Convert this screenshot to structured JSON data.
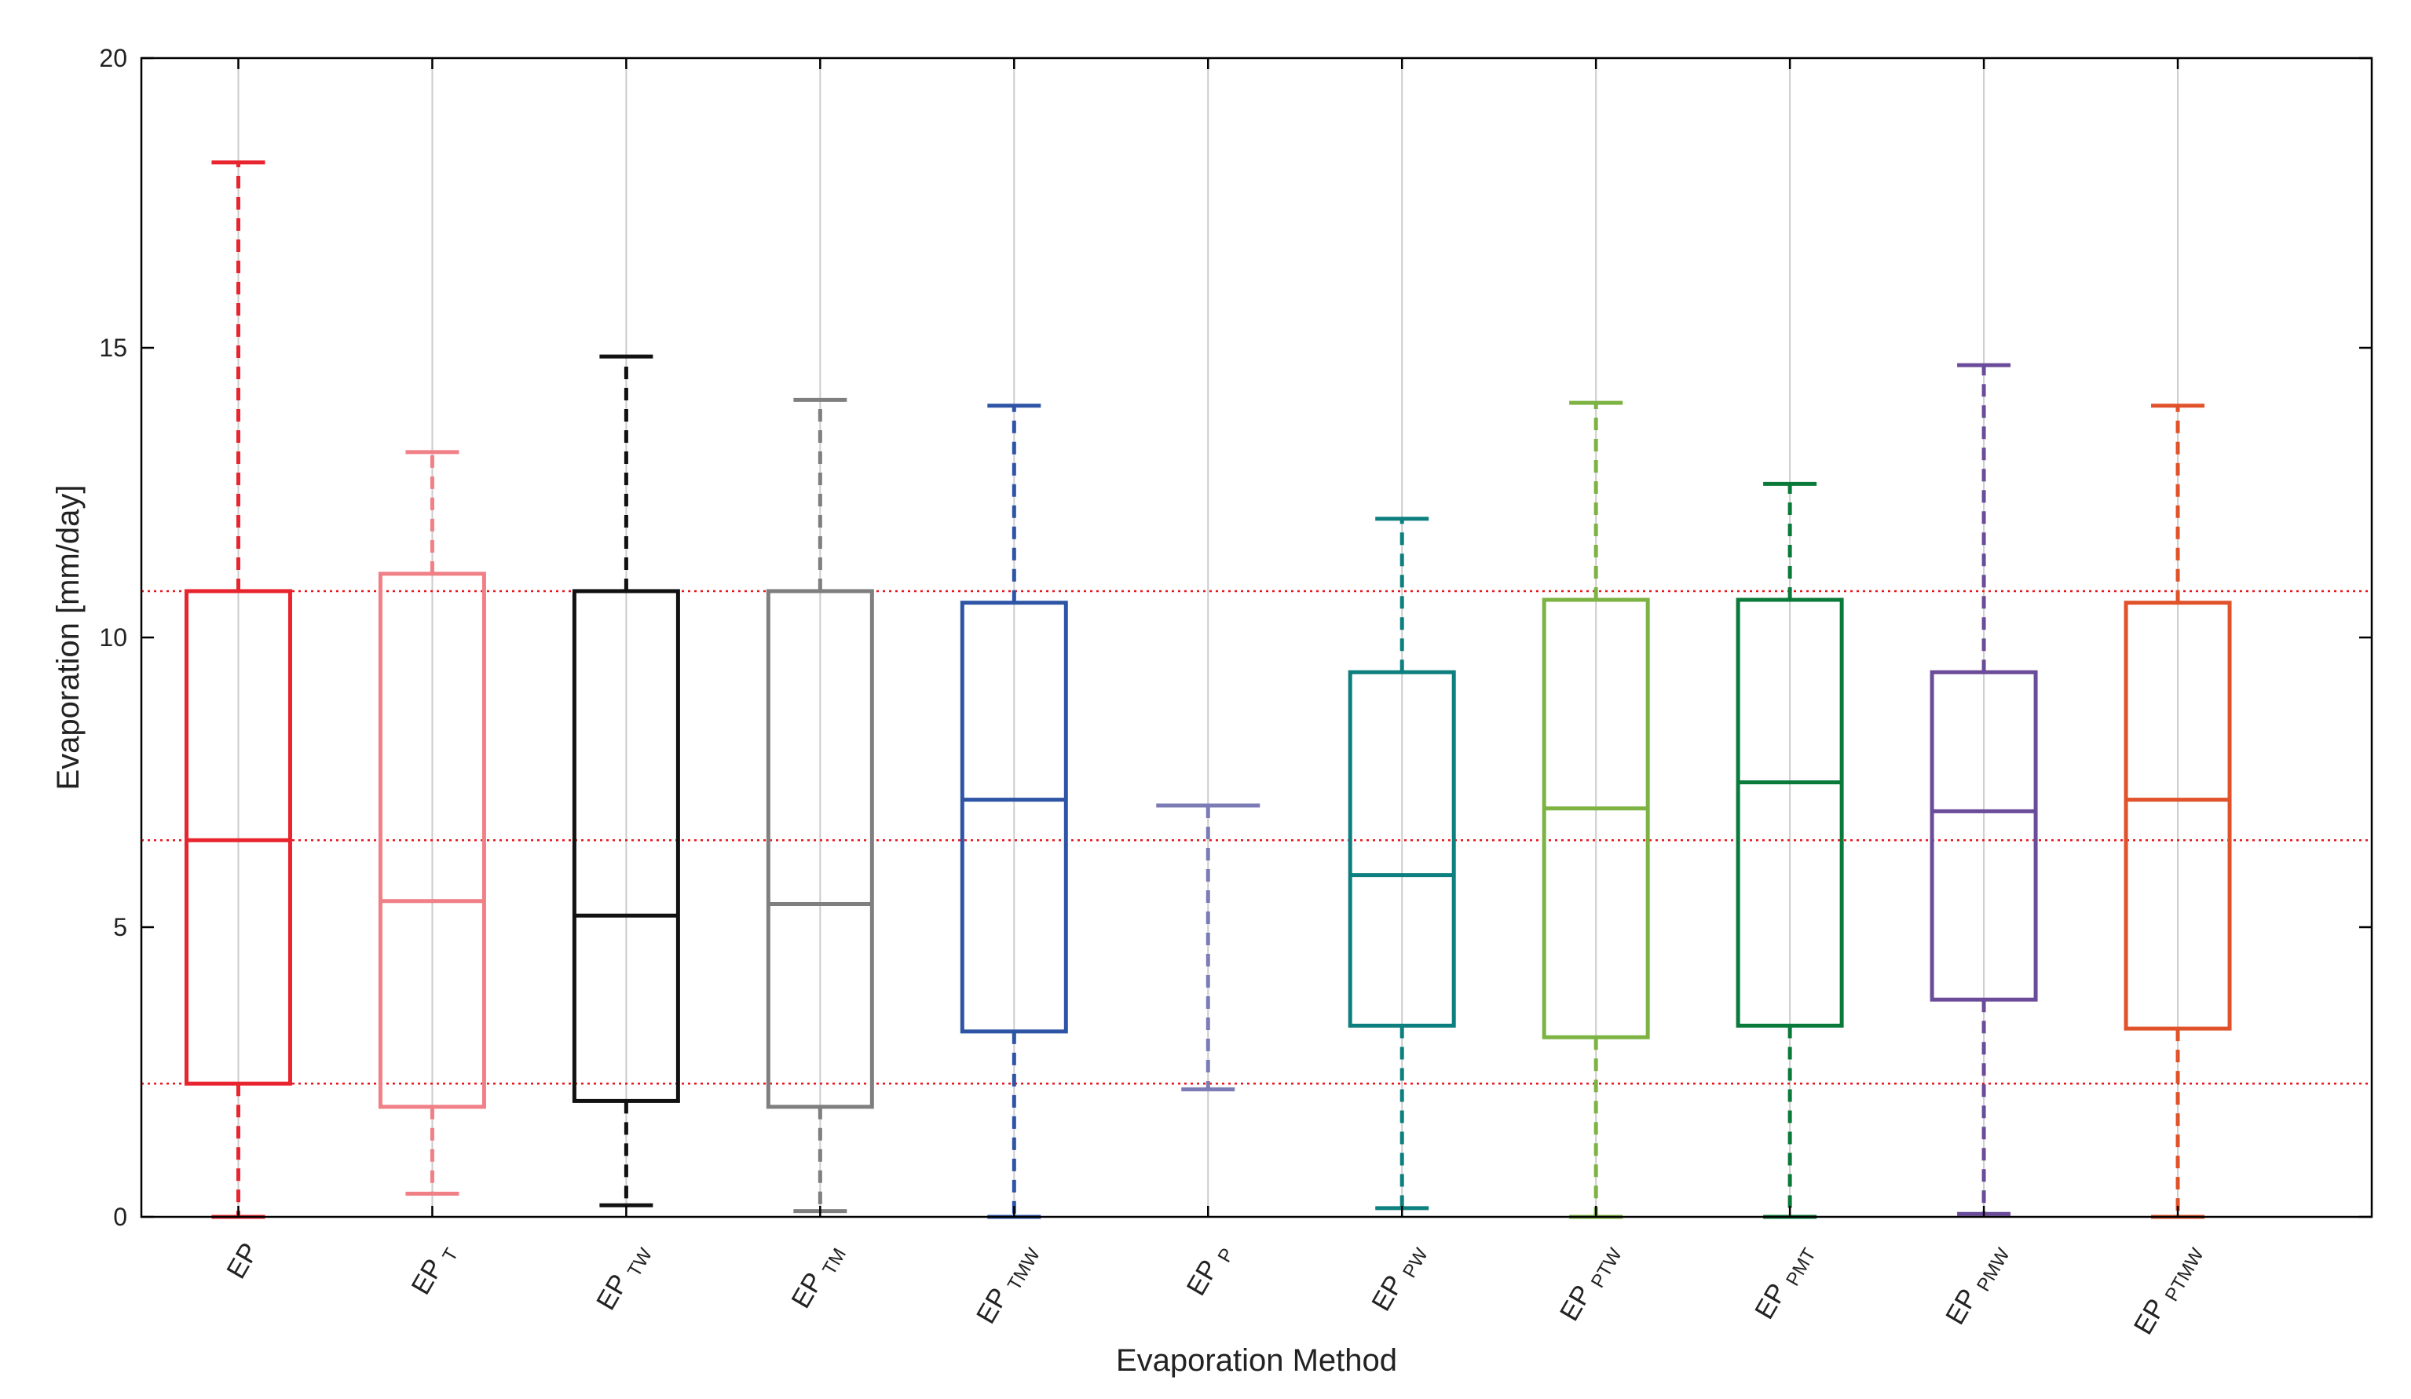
{
  "chart_data": {
    "type": "box",
    "xlabel": "Evaporation Method",
    "ylabel": "Evaporation [mm/day]",
    "ylim": [
      0,
      20
    ],
    "yticks": [
      0,
      5,
      10,
      15,
      20
    ],
    "grid": "vertical lines at each category",
    "reference_lines": [
      10.8,
      6.5,
      2.3
    ],
    "reference_line_color": "#e8141c",
    "boxes": [
      {
        "base": "EP",
        "sub": "",
        "color": "#e8242e",
        "whisker_low": 0.0,
        "q1": 2.3,
        "median": 6.5,
        "q3": 10.8,
        "whisker_high": 18.2
      },
      {
        "base": "EP",
        "sub": "T",
        "color": "#f07f86",
        "whisker_low": 0.4,
        "q1": 1.9,
        "median": 5.45,
        "q3": 11.1,
        "whisker_high": 13.2
      },
      {
        "base": "EP",
        "sub": "TW",
        "color": "#111111",
        "whisker_low": 0.2,
        "q1": 2.0,
        "median": 5.2,
        "q3": 10.8,
        "whisker_high": 14.85
      },
      {
        "base": "EP",
        "sub": "TM",
        "color": "#7f7f7f",
        "whisker_low": 0.1,
        "q1": 1.9,
        "median": 5.4,
        "q3": 10.8,
        "whisker_high": 14.1
      },
      {
        "base": "EP",
        "sub": "TMW",
        "color": "#2e54a5",
        "whisker_low": 0.0,
        "q1": 3.2,
        "median": 7.2,
        "q3": 10.6,
        "whisker_high": 14.0
      },
      {
        "base": "EP",
        "sub": "P",
        "color": "#7b7bb5",
        "whisker_low": 2.2,
        "q1": 7.1,
        "median": 7.1,
        "q3": 7.1,
        "whisker_high": 7.1
      },
      {
        "base": "EP",
        "sub": "PW",
        "color": "#0e7f7f",
        "whisker_low": 0.15,
        "q1": 3.3,
        "median": 5.9,
        "q3": 9.4,
        "whisker_high": 12.05
      },
      {
        "base": "EP",
        "sub": "PTW",
        "color": "#7cb342",
        "whisker_low": 0.0,
        "q1": 3.1,
        "median": 7.05,
        "q3": 10.65,
        "whisker_high": 14.05
      },
      {
        "base": "EP",
        "sub": "PMT",
        "color": "#0a7a3a",
        "whisker_low": 0.0,
        "q1": 3.3,
        "median": 7.5,
        "q3": 10.65,
        "whisker_high": 12.65
      },
      {
        "base": "EP",
        "sub": "PMW",
        "color": "#6b4c9a",
        "whisker_low": 0.05,
        "q1": 3.75,
        "median": 7.0,
        "q3": 9.4,
        "whisker_high": 14.7
      },
      {
        "base": "EP",
        "sub": "PTMW",
        "color": "#e0522a",
        "whisker_low": 0.0,
        "q1": 3.25,
        "median": 7.2,
        "q3": 10.6,
        "whisker_high": 14.0
      }
    ]
  }
}
